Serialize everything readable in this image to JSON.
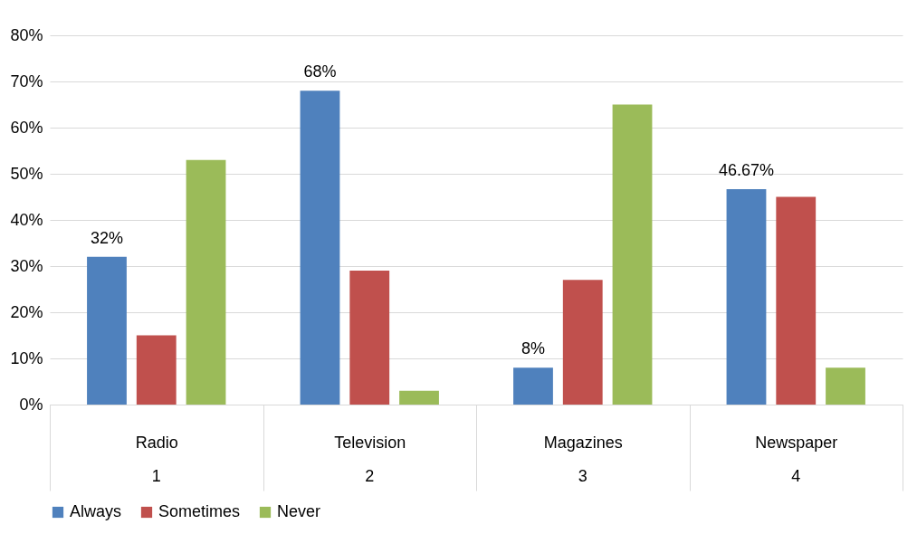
{
  "chart_data": {
    "type": "bar",
    "categories": [
      "Radio",
      "Television",
      "Magazines",
      "Newspaper"
    ],
    "series": [
      {
        "name": "Always",
        "color": "#4f81bd",
        "values": [
          32,
          68,
          8,
          46.67
        ],
        "value_labels": [
          "32%",
          "68%",
          "8%",
          "46.67%"
        ]
      },
      {
        "name": "Sometimes",
        "color": "#c0504d",
        "values": [
          15,
          29,
          27,
          45
        ]
      },
      {
        "name": "Never",
        "color": "#9bbb59",
        "values": [
          53,
          3,
          65,
          8
        ]
      }
    ],
    "annotations": [
      "1",
      "2",
      "3",
      "4"
    ],
    "ylim": [
      0,
      80
    ],
    "yticks": [
      {
        "value": 0,
        "label": "0%"
      },
      {
        "value": 10,
        "label": "10%"
      },
      {
        "value": 20,
        "label": "20%"
      },
      {
        "value": 30,
        "label": "30%"
      },
      {
        "value": 40,
        "label": "40%"
      },
      {
        "value": 50,
        "label": "50%"
      },
      {
        "value": 60,
        "label": "60%"
      },
      {
        "value": 70,
        "label": "70%"
      },
      {
        "value": 80,
        "label": "80%"
      }
    ],
    "grid": "y",
    "legend": "bottom"
  }
}
